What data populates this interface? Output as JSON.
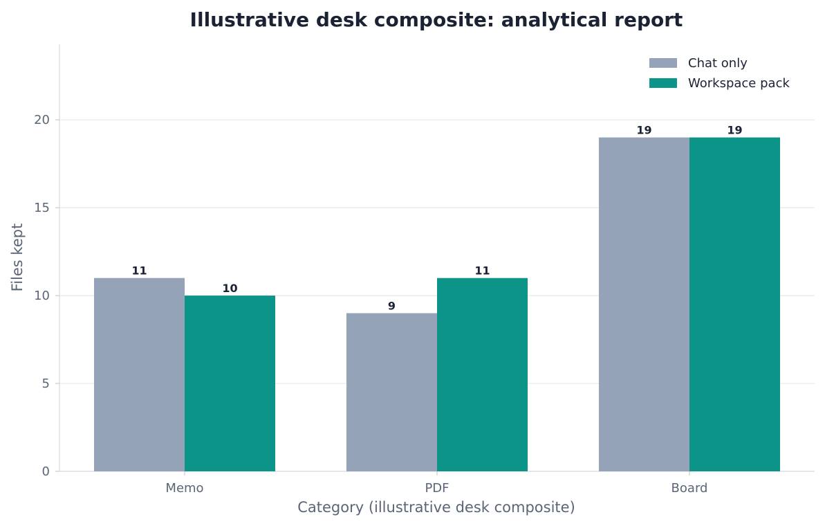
{
  "chart_data": {
    "type": "bar",
    "title": "Illustrative desk composite: analytical report",
    "xlabel": "Category (illustrative desk composite)",
    "ylabel": "Files kept",
    "categories": [
      "Memo",
      "PDF",
      "Board"
    ],
    "series": [
      {
        "name": "Chat only",
        "values": [
          11,
          9,
          19
        ],
        "color": "#94a3b8"
      },
      {
        "name": "Workspace pack",
        "values": [
          10,
          11,
          19
        ],
        "color": "#0d9488"
      }
    ],
    "ylim": [
      0,
      24.3
    ],
    "yticks": [
      0,
      5,
      10,
      15,
      20
    ],
    "grid": true,
    "legend_position": "top-right",
    "show_value_labels": true
  }
}
